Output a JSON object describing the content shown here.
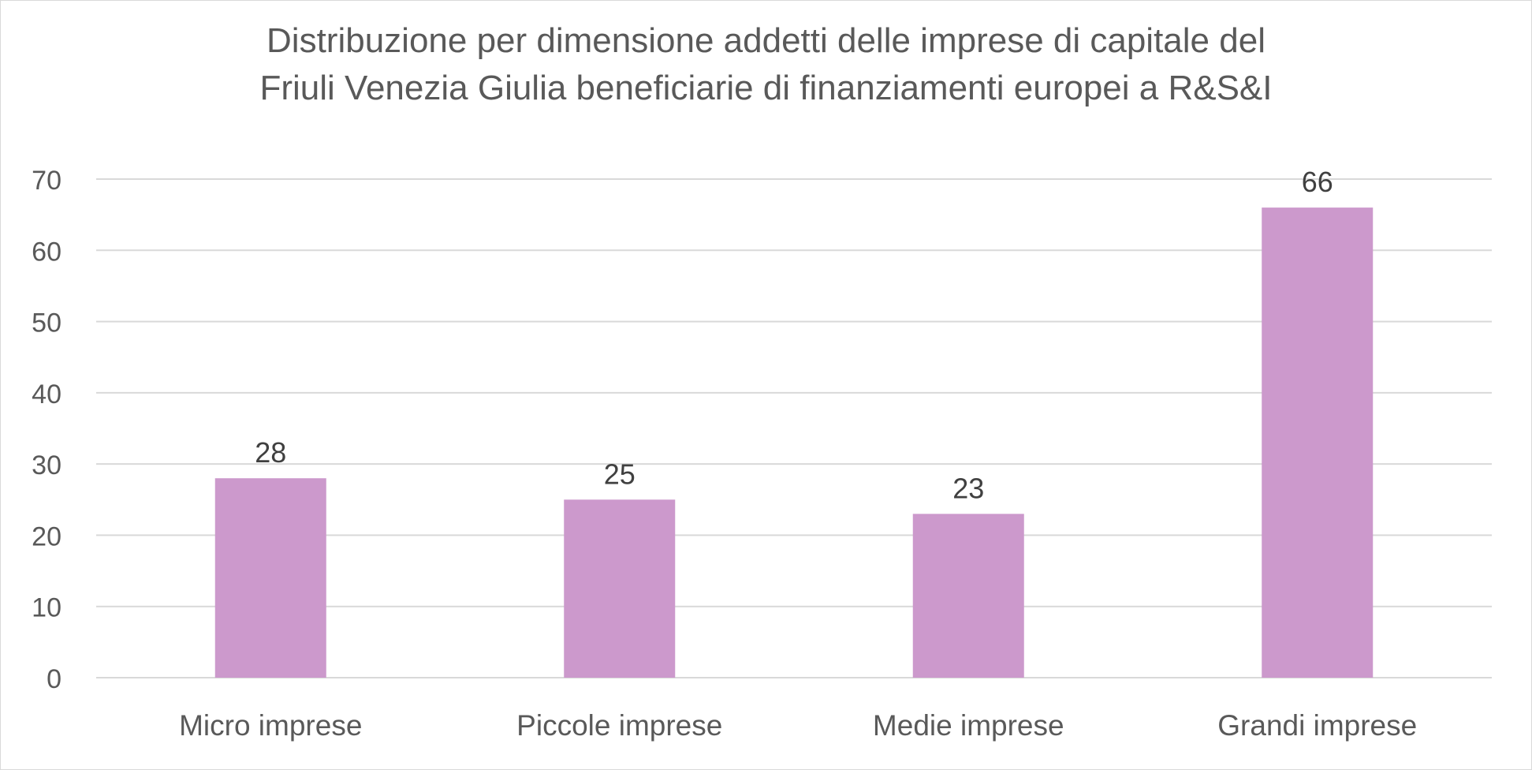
{
  "chart_data": {
    "type": "bar",
    "title_lines": [
      "Distribuzione per dimensione addetti delle imprese di capitale del",
      "Friuli Venezia Giulia beneficiarie di finanziamenti europei a R&S&I"
    ],
    "categories": [
      "Micro imprese",
      "Piccole imprese",
      "Medie imprese",
      "Grandi imprese"
    ],
    "values": [
      28,
      25,
      23,
      66
    ],
    "data_labels": [
      "28",
      "25",
      "23",
      "66"
    ],
    "ylim": [
      0,
      70
    ],
    "yticks": [
      "0",
      "10",
      "20",
      "30",
      "40",
      "50",
      "60",
      "70"
    ],
    "grid": true,
    "legend": "none",
    "bar_color": "#cc99cc"
  }
}
